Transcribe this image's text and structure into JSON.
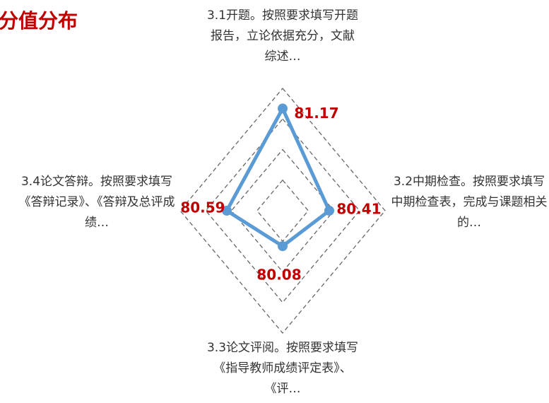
{
  "chart_data": {
    "type": "radar",
    "title": "分值分布",
    "categories": [
      "3.1开题。按照要求填写开题报告，立论依据充分，文献综述…",
      "3.2中期检查。按照要求填写中期检查表，完成与课题相关的…",
      "3.3论文评阅。按照要求填写《指导教师成绩评定表》、《评…",
      "3.4论文答辩。按照要求填写《答辩记录》、《答辩及总评成绩…"
    ],
    "values": [
      81.17,
      80.41,
      80.08,
      80.59
    ],
    "color": "#5b9bd5",
    "rlim": [
      79.5,
      81.5
    ],
    "rticks": [
      80,
      80.5,
      81,
      81.5
    ],
    "grid": true
  }
}
